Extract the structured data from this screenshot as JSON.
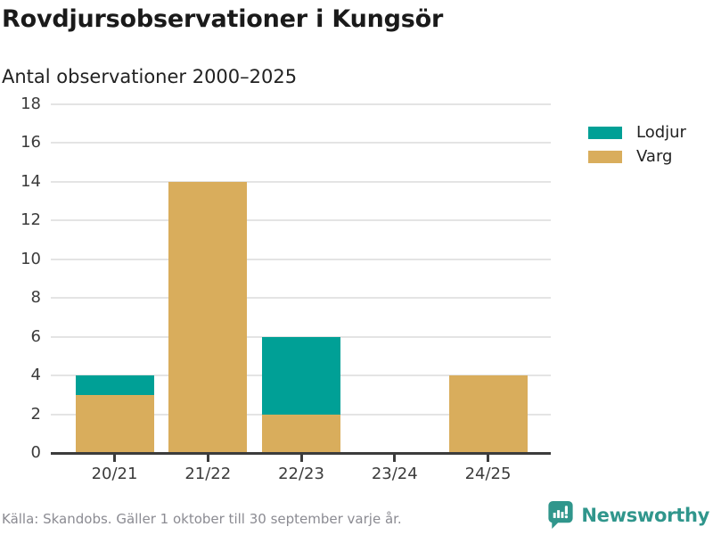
{
  "title": "Rovdjursobservationer i Kungsör",
  "subtitle": "Antal observationer 2000–2025",
  "legend": [
    {
      "label": "Lodjur",
      "color": "#00a096"
    },
    {
      "label": "Varg",
      "color": "#d9ad5c"
    }
  ],
  "footer": {
    "source": "Källa: Skandobs. Gäller 1 oktober till 30 september varje år."
  },
  "branding": {
    "name": "Newsworthy",
    "icon": "bar-chart-speech-bubble-icon",
    "color": "#30968c"
  },
  "colors": {
    "lodjur": "#00a096",
    "varg": "#d9ad5c",
    "gridline": "#e4e4e4",
    "axis": "#3c3c3c",
    "footer_text": "#8b8b92"
  },
  "chart_data": {
    "type": "bar",
    "stacked": true,
    "title": "Rovdjursobservationer i Kungsör",
    "subtitle": "Antal observationer 2000–2025",
    "categories": [
      "20/21",
      "21/22",
      "22/23",
      "23/24",
      "24/25"
    ],
    "series": [
      {
        "name": "Lodjur",
        "color": "#00a096",
        "values": [
          1,
          0,
          4,
          0,
          0
        ]
      },
      {
        "name": "Varg",
        "color": "#d9ad5c",
        "values": [
          3,
          14,
          2,
          0,
          4
        ]
      }
    ],
    "stack_bottom_to_top": [
      "Varg",
      "Lodjur"
    ],
    "totals": [
      4,
      14,
      6,
      0,
      4
    ],
    "xlabel": "",
    "ylabel": "Antal observationer",
    "ylim": [
      0,
      18
    ],
    "yticks": [
      0,
      2,
      4,
      6,
      8,
      10,
      12,
      14,
      16,
      18
    ],
    "grid": true,
    "legend_position": "right"
  }
}
